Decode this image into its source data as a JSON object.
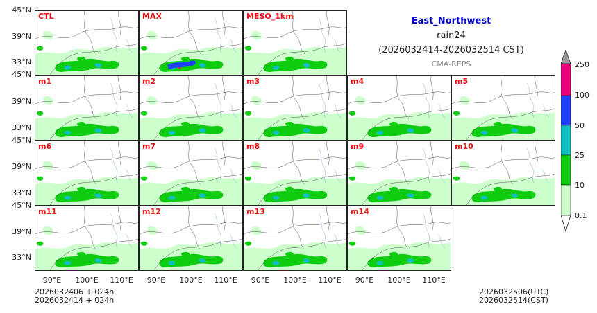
{
  "title": {
    "region": "East_Northwest",
    "variable": "rain24",
    "period": "(2026032414-2026032514 CST)",
    "model": "CMA-REPS",
    "region_color": "#0000cc"
  },
  "panels": [
    {
      "label": "CTL",
      "row": 0,
      "col": 0
    },
    {
      "label": "MAX",
      "row": 0,
      "col": 1
    },
    {
      "label": "MESO_1km",
      "row": 0,
      "col": 2
    },
    {
      "label": "m1",
      "row": 1,
      "col": 0
    },
    {
      "label": "m2",
      "row": 1,
      "col": 1
    },
    {
      "label": "m3",
      "row": 1,
      "col": 2
    },
    {
      "label": "m4",
      "row": 1,
      "col": 3
    },
    {
      "label": "m5",
      "row": 1,
      "col": 4
    },
    {
      "label": "m6",
      "row": 2,
      "col": 0
    },
    {
      "label": "m7",
      "row": 2,
      "col": 1
    },
    {
      "label": "m8",
      "row": 2,
      "col": 2
    },
    {
      "label": "m9",
      "row": 2,
      "col": 3
    },
    {
      "label": "m10",
      "row": 2,
      "col": 4
    },
    {
      "label": "m11",
      "row": 3,
      "col": 0
    },
    {
      "label": "m12",
      "row": 3,
      "col": 1
    },
    {
      "label": "m13",
      "row": 3,
      "col": 2
    },
    {
      "label": "m14",
      "row": 3,
      "col": 3
    }
  ],
  "axes": {
    "lat_labels": [
      "45°N",
      "39°N",
      "33°N"
    ],
    "lon_labels": [
      "90°E",
      "100°E",
      "110°E"
    ]
  },
  "colorbar": {
    "ticks": [
      "250",
      "100",
      "50",
      "25",
      "10",
      "0.1"
    ],
    "colors": [
      "#e8007a",
      "#2040ff",
      "#10c0c0",
      "#10cc10",
      "#ccffcc"
    ],
    "extend_high_color": "#999999",
    "extend_low_color": "#ffffff"
  },
  "footer": {
    "init_line1": "2026032406  +  024h",
    "init_line2": "2026032414  +  024h",
    "time_utc": "2026032506(UTC)",
    "time_cst": "2026032514(CST)"
  }
}
